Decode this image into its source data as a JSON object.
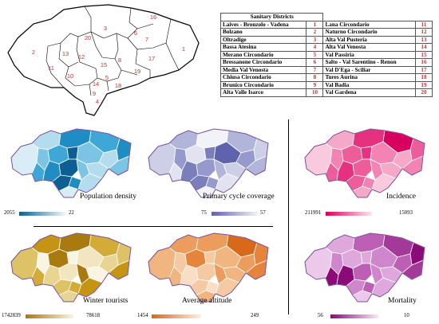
{
  "table": {
    "title": "Sanitary Districts",
    "rows": [
      {
        "l_name": "Laives - Bronzolo - Vadena",
        "l_num": "1",
        "r_name": "Lana Circondario",
        "r_num": "11"
      },
      {
        "l_name": "Bolzano",
        "l_num": "2",
        "r_name": "Naturno Circondario",
        "r_num": "12"
      },
      {
        "l_name": "Oltradige",
        "l_num": "3",
        "r_name": "Alta Val Pusteria",
        "r_num": "13"
      },
      {
        "l_name": "Bassa Atesina",
        "l_num": "4",
        "r_name": "Alta Val Venosta",
        "r_num": "14"
      },
      {
        "l_name": "Merano Circondario",
        "l_num": "5",
        "r_name": "Val Passiria",
        "r_num": "15"
      },
      {
        "l_name": "Bressanone Circondario",
        "l_num": "6",
        "r_name": "Salto - Val Sarentino -  Renon",
        "r_num": "16"
      },
      {
        "l_name": "Media Val Venosta",
        "l_num": "7",
        "r_name": "Val D'Ega - Sciliar",
        "r_num": "17"
      },
      {
        "l_name": "Chiusa Circondario",
        "l_num": "8",
        "r_name": "Tures Aurina",
        "r_num": "18"
      },
      {
        "l_name": "Brunico Circondario",
        "l_num": "9",
        "r_name": "Val Badia",
        "r_num": "19"
      },
      {
        "l_name": "Alta Valle Isarco",
        "l_num": "10",
        "r_name": "Val Gardena",
        "r_num": "20"
      }
    ]
  },
  "overview_map": {
    "labels": [
      "16",
      "3",
      "20",
      "6",
      "7",
      "1",
      "2",
      "13",
      "12",
      "15",
      "8",
      "17",
      "11",
      "10",
      "19",
      "5",
      "14",
      "18",
      "9",
      "4"
    ],
    "label_color": "#e32b2b"
  },
  "panels": [
    {
      "title": "Population density",
      "min": "2055",
      "max": "22",
      "colors": [
        "#0b5f93",
        "#1f8cc4",
        "#3ea7d8",
        "#7cc4e4",
        "#b3dcef",
        "#d9edf7",
        "#f0f8fc"
      ]
    },
    {
      "title": "Primary cycle coverage",
      "min": "75",
      "max": "57",
      "colors": [
        "#5f63ad",
        "#7a7fbc",
        "#9599cb",
        "#b2b5da",
        "#cdcfe7",
        "#e2e3f1",
        "#f2f2f9"
      ]
    },
    {
      "title": "Incidence",
      "min": "211991",
      "max": "15093",
      "colors": [
        "#d8005e",
        "#e5317f",
        "#ee5c99",
        "#f283b2",
        "#f6a8c8",
        "#f9cadd",
        "#fde7f0"
      ]
    },
    {
      "title": "Winter tourists",
      "min": "1742839",
      "max": "78618",
      "colors": [
        "#a87a10",
        "#c49412",
        "#d3ab36",
        "#deC266",
        "#e8d594",
        "#f1e6c0",
        "#faf4e3"
      ]
    },
    {
      "title": "Average altitude",
      "min": "1454",
      "max": "249",
      "colors": [
        "#d9691a",
        "#e5843a",
        "#ec9c5c",
        "#f1b57f",
        "#f5caa2",
        "#f9ddc4",
        "#fdf0e4"
      ]
    },
    {
      "title": "Mortality",
      "min": "56",
      "max": "10",
      "colors": [
        "#8b0a78",
        "#a5399a",
        "#bd60b5",
        "#cf86cb",
        "#dfa8dc",
        "#ecc9ea",
        "#f8e8f7"
      ]
    }
  ]
}
